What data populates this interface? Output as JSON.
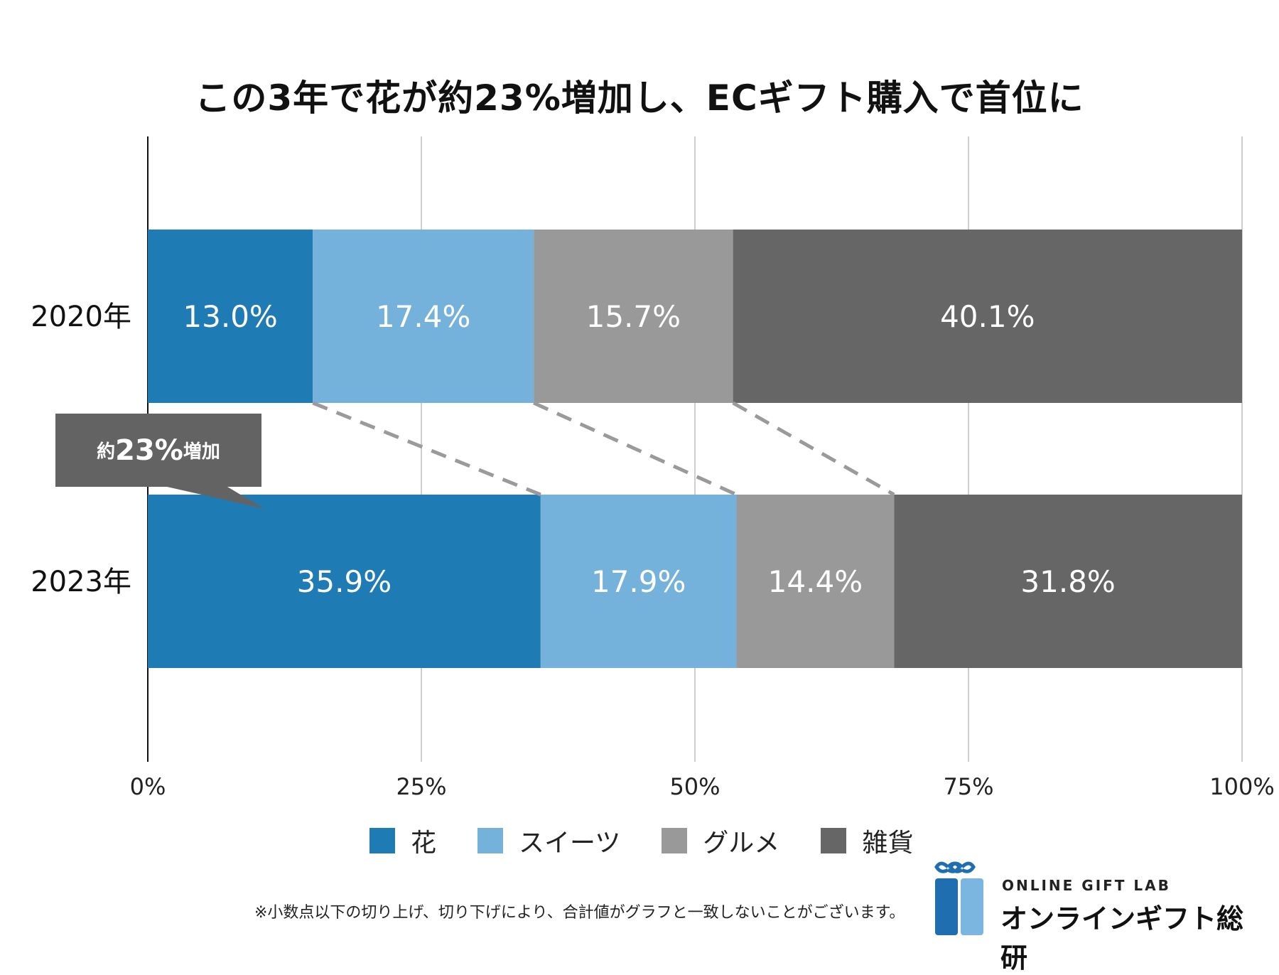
{
  "chart_data": {
    "type": "bar",
    "orientation": "horizontal",
    "stacked": true,
    "title": "この3年で花が約23%増加し、ECギフト購入で首位に",
    "categories": [
      "2020年",
      "2023年"
    ],
    "series": [
      {
        "name": "花",
        "color": "#1f7bb4",
        "values": [
          13.0,
          35.9
        ],
        "labels": [
          "13.0%",
          "35.9%"
        ]
      },
      {
        "name": "スイーツ",
        "color": "#74b2dc",
        "values": [
          17.4,
          17.9
        ],
        "labels": [
          "17.4%",
          "17.9%"
        ]
      },
      {
        "name": "グルメ",
        "color": "#999999",
        "values": [
          15.7,
          14.4
        ],
        "labels": [
          "15.7%",
          "14.4%"
        ]
      },
      {
        "name": "雑貨",
        "color": "#666666",
        "values": [
          40.1,
          31.8
        ],
        "labels": [
          "40.1%",
          "31.8%"
        ]
      }
    ],
    "xlim": [
      0,
      100
    ],
    "xticks": [
      0,
      25,
      50,
      75,
      100
    ],
    "xtick_labels": [
      "0%",
      "25%",
      "50%",
      "75%",
      "100%"
    ],
    "grid": true,
    "legend": "bottom-center",
    "annotation": {
      "prefix": "約",
      "value": "23%",
      "suffix": "増加"
    }
  },
  "footnote": "※小数点以下の切り上げ、切り下げにより、合計値がグラフと一致しないことがございます。",
  "logo": {
    "en": "ONLINE GIFT LAB",
    "ja": "オンラインギフト総研",
    "colors": [
      "#1f6fb0",
      "#7ab6df"
    ]
  }
}
